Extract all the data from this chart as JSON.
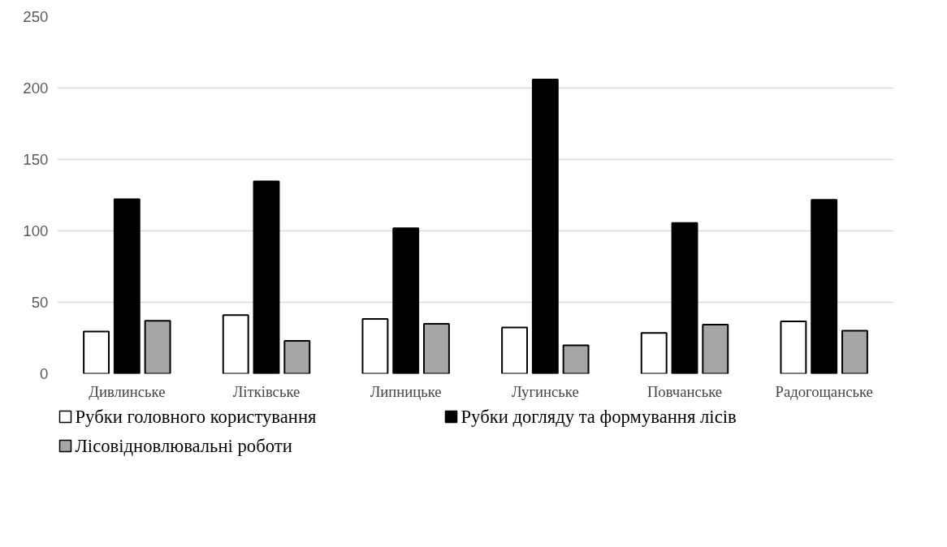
{
  "chart_data": {
    "type": "bar",
    "categories": [
      "Дивлинське",
      "Літківське",
      "Липницьке",
      "Лугинське",
      "Повчанське",
      "Радогощанське"
    ],
    "series": [
      {
        "name": "Рубки головного користування",
        "color": "#ffffff",
        "values": [
          29.5,
          41,
          38.3,
          32.4,
          28.5,
          36.7
        ]
      },
      {
        "name": "Рубки догляду та формування лісів",
        "color": "#000000",
        "values": [
          122.1,
          134.6,
          101.8,
          206,
          105.5,
          121.7
        ]
      },
      {
        "name": "Лісовідновлювальні роботи",
        "color": "#a6a6a6",
        "values": [
          37.1,
          23,
          35,
          19.9,
          34.4,
          30.1
        ]
      }
    ],
    "ylim": [
      0,
      250
    ],
    "yticks": [
      0,
      50,
      100,
      150,
      200,
      250
    ],
    "grid": "y",
    "legend": "bottom"
  }
}
